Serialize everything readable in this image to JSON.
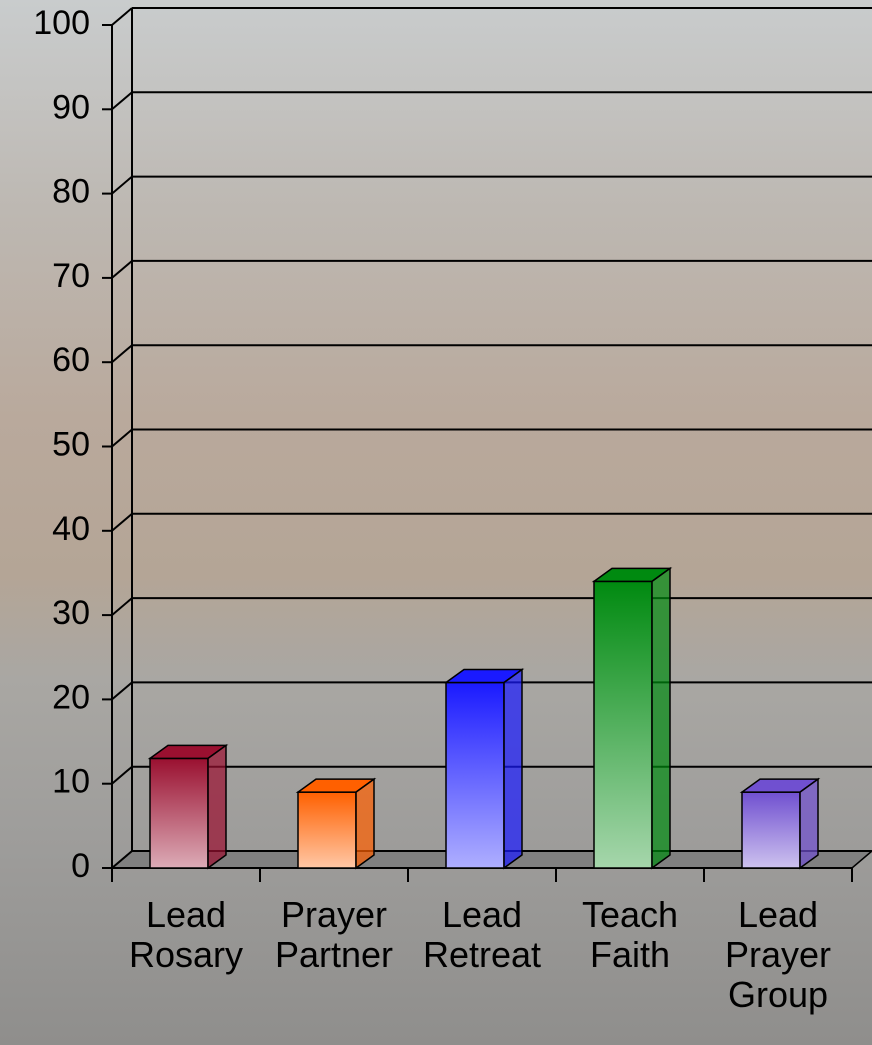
{
  "chart_data": {
    "type": "bar",
    "categories": [
      "Lead Rosary",
      "Prayer Partner",
      "Lead Retreat",
      "Teach Faith",
      "Lead Prayer Group"
    ],
    "values": [
      13,
      9,
      22,
      34,
      9
    ],
    "colors": [
      "#9a1030",
      "#ff6000",
      "#1a1aff",
      "#008a10",
      "#7050d0"
    ],
    "ylim": [
      0,
      100
    ],
    "yticks": [
      0,
      10,
      20,
      30,
      40,
      50,
      60,
      70,
      80,
      90,
      100
    ],
    "grid": true
  }
}
